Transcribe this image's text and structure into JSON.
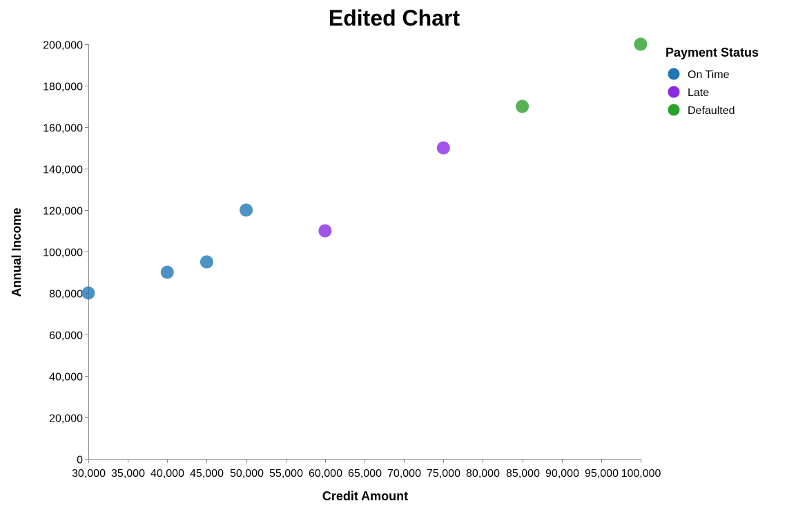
{
  "chart_data": {
    "type": "scatter",
    "title": "Edited Chart",
    "xlabel": "Credit Amount",
    "ylabel": "Annual Income",
    "xlim": [
      30000,
      100000
    ],
    "ylim": [
      0,
      200000
    ],
    "x_ticks": [
      "30,000",
      "35,000",
      "40,000",
      "45,000",
      "50,000",
      "55,000",
      "60,000",
      "65,000",
      "70,000",
      "75,000",
      "80,000",
      "85,000",
      "90,000",
      "95,000",
      "100,000"
    ],
    "x_tick_values": [
      30000,
      35000,
      40000,
      45000,
      50000,
      55000,
      60000,
      65000,
      70000,
      75000,
      80000,
      85000,
      90000,
      95000,
      100000
    ],
    "y_ticks": [
      "0",
      "20,000",
      "40,000",
      "60,000",
      "80,000",
      "100,000",
      "120,000",
      "140,000",
      "160,000",
      "180,000",
      "200,000"
    ],
    "y_tick_values": [
      0,
      20000,
      40000,
      60000,
      80000,
      100000,
      120000,
      140000,
      160000,
      180000,
      200000
    ],
    "grid": false,
    "legend": {
      "title": "Payment Status",
      "placement": "right",
      "entries": [
        {
          "label": "On Time",
          "color": "#1f77b4"
        },
        {
          "label": "Late",
          "color": "#8a2be2"
        },
        {
          "label": "Defaulted",
          "color": "#2ca02c"
        }
      ]
    },
    "series": [
      {
        "name": "On Time",
        "color": "#1f77b4",
        "points": [
          [
            30000,
            80000
          ],
          [
            40000,
            90000
          ],
          [
            45000,
            95000
          ],
          [
            50000,
            120000
          ]
        ]
      },
      {
        "name": "Late",
        "color": "#8a2be2",
        "points": [
          [
            60000,
            110000
          ],
          [
            75000,
            150000
          ]
        ]
      },
      {
        "name": "Defaulted",
        "color": "#2ca02c",
        "points": [
          [
            85000,
            170000
          ],
          [
            100000,
            200000
          ]
        ]
      }
    ]
  }
}
